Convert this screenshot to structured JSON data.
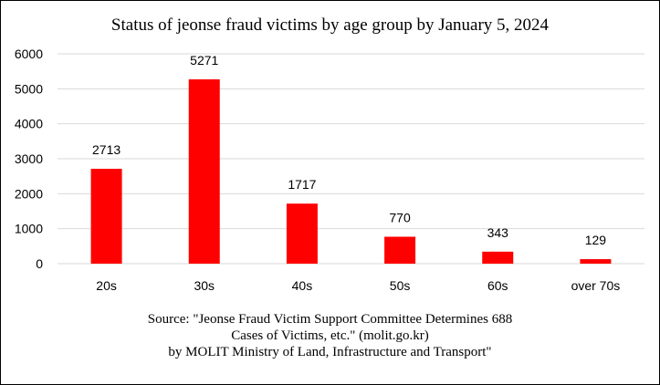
{
  "chart_data": {
    "type": "bar",
    "title": "Status of jeonse fraud victims by age group by January 5, 2024",
    "categories": [
      "20s",
      "30s",
      "40s",
      "50s",
      "60s",
      "over 70s"
    ],
    "values": [
      2713,
      5271,
      1717,
      770,
      343,
      129
    ],
    "data_labels": [
      "2713",
      "5271",
      "1717",
      "770",
      "343",
      "129"
    ],
    "yticks": [
      "0",
      "1000",
      "2000",
      "3000",
      "4000",
      "5000",
      "6000"
    ],
    "ylim": [
      0,
      6000
    ],
    "xlabel": "",
    "ylabel": "",
    "grid": true,
    "legend": "none",
    "bar_color": "#ff0000",
    "grid_color": "#d9d9d9"
  },
  "source": {
    "lines": [
      "Source: \"Jeonse Fraud Victim Support Committee Determines 688",
      "Cases of Victims, etc.\" (molit.go.kr)",
      "by MOLIT Ministry of Land, Infrastructure and Transport\""
    ]
  }
}
